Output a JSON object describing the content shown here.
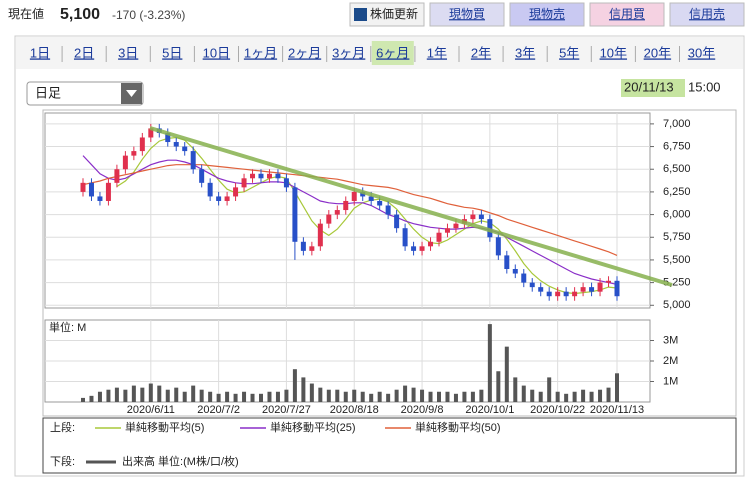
{
  "header": {
    "price_label": "現在値",
    "price": "5,100",
    "change": "-170 (-3.23%)",
    "buttons": [
      {
        "label": "株価更新",
        "color": "#f2f2f2"
      },
      {
        "label": "現物買",
        "color": "#dcdcf2"
      },
      {
        "label": "現物売",
        "color": "#c9c9f2"
      },
      {
        "label": "信用買",
        "color": "#f5d2e2"
      },
      {
        "label": "信用売",
        "color": "#d9d9f2"
      }
    ]
  },
  "tabs": [
    "1日",
    "2日",
    "3日",
    "5日",
    "10日",
    "1ヶ月",
    "2ヶ月",
    "3ヶ月",
    "6ヶ月",
    "1年",
    "2年",
    "3年",
    "5年",
    "10年",
    "20年",
    "30年"
  ],
  "selected_tab_index": 8,
  "dropdown": "日足",
  "timestamp": {
    "date": "20/11/13",
    "time": "15:00"
  },
  "chart_data": [
    {
      "type": "candlestick",
      "legend_label": "上段:",
      "up_color": "#e0304e",
      "down_color": "#2850c8",
      "open": [
        6250,
        6350,
        6200,
        6150,
        6350,
        6500,
        6650,
        6700,
        6850,
        6950,
        6900,
        6800,
        6750,
        6700,
        6500,
        6350,
        6200,
        6150,
        6200,
        6300,
        6400,
        6450,
        6400,
        6450,
        6400,
        6300,
        5700,
        5600,
        5650,
        5900,
        6000,
        6050,
        6150,
        6250,
        6200,
        6150,
        6100,
        6000,
        5850,
        5650,
        5600,
        5650,
        5700,
        5800,
        5850,
        5900,
        5950,
        6000,
        5950,
        5750,
        5550,
        5400,
        5350,
        5250,
        5200,
        5150,
        5100,
        5150,
        5100,
        5150,
        5200,
        5150,
        5250,
        5270
      ],
      "high": [
        6400,
        6400,
        6250,
        6400,
        6550,
        6700,
        6750,
        6900,
        7000,
        7000,
        6950,
        6850,
        6800,
        6750,
        6550,
        6400,
        6250,
        6250,
        6350,
        6450,
        6500,
        6500,
        6500,
        6500,
        6450,
        6350,
        5750,
        5700,
        5950,
        6050,
        6100,
        6200,
        6300,
        6300,
        6250,
        6200,
        6150,
        6050,
        5900,
        5700,
        5700,
        5750,
        5850,
        5900,
        5950,
        6000,
        6050,
        6050,
        6000,
        5800,
        5600,
        5450,
        5400,
        5300,
        5250,
        5200,
        5200,
        5200,
        5200,
        5250,
        5250,
        5300,
        5320,
        5320
      ],
      "low": [
        6200,
        6150,
        6100,
        6100,
        6300,
        6450,
        6600,
        6650,
        6800,
        6850,
        6750,
        6700,
        6650,
        6450,
        6300,
        6150,
        6100,
        6100,
        6150,
        6250,
        6350,
        6350,
        6350,
        6350,
        6250,
        5500,
        5550,
        5550,
        5600,
        5850,
        5950,
        6000,
        6100,
        6150,
        6100,
        6050,
        5950,
        5800,
        5600,
        5550,
        5550,
        5600,
        5650,
        5750,
        5800,
        5850,
        5900,
        5900,
        5700,
        5500,
        5350,
        5300,
        5200,
        5150,
        5100,
        5050,
        5050,
        5050,
        5050,
        5100,
        5100,
        5100,
        5200,
        5050
      ],
      "close": [
        6350,
        6200,
        6150,
        6350,
        6500,
        6650,
        6700,
        6850,
        6950,
        6900,
        6800,
        6750,
        6700,
        6500,
        6350,
        6200,
        6150,
        6200,
        6300,
        6400,
        6450,
        6400,
        6450,
        6400,
        6300,
        5700,
        5600,
        5650,
        5900,
        6000,
        6050,
        6150,
        6250,
        6200,
        6150,
        6100,
        6000,
        5850,
        5650,
        5600,
        5650,
        5700,
        5800,
        5850,
        5900,
        5950,
        6000,
        5950,
        5750,
        5550,
        5400,
        5350,
        5250,
        5200,
        5150,
        5100,
        5150,
        5100,
        5150,
        5200,
        5150,
        5250,
        5270,
        5100
      ],
      "series": [
        {
          "name": "単純移動平均(5)",
          "color": "#a8c83a",
          "values": [
            null,
            null,
            null,
            null,
            6310,
            6370,
            6470,
            6610,
            6730,
            6810,
            6840,
            6850,
            6820,
            6730,
            6620,
            6500,
            6380,
            6280,
            6240,
            6250,
            6300,
            6350,
            6400,
            6420,
            6400,
            6250,
            6090,
            5930,
            5830,
            5770,
            5840,
            5950,
            6070,
            6130,
            6160,
            6170,
            6140,
            6060,
            5950,
            5840,
            5750,
            5690,
            5680,
            5720,
            5780,
            5840,
            5900,
            5930,
            5910,
            5840,
            5730,
            5600,
            5460,
            5350,
            5270,
            5210,
            5170,
            5140,
            5130,
            5140,
            5150,
            5170,
            5200,
            5190
          ]
        },
        {
          "name": "単純移動平均(25)",
          "color": "#8a2ec8",
          "values": [
            6650,
            6550,
            6450,
            6400,
            6380,
            6400,
            6450,
            6500,
            6550,
            6580,
            6600,
            6600,
            6580,
            6550,
            6500,
            6450,
            6400,
            6370,
            6350,
            6340,
            6340,
            6350,
            6360,
            6360,
            6350,
            6300,
            6250,
            6200,
            6150,
            6130,
            6120,
            6120,
            6130,
            6130,
            6100,
            6050,
            6000,
            5970,
            5930,
            5900,
            5880,
            5860,
            5850,
            5840,
            5840,
            5850,
            5860,
            5850,
            5830,
            5800,
            5750,
            5700,
            5650,
            5600,
            5550,
            5500,
            5450,
            5400,
            5350,
            5320,
            5290,
            5270,
            5250,
            5230
          ]
        },
        {
          "name": "単純移動平均(50)",
          "color": "#e0603a",
          "values": [
            6330,
            6350,
            6370,
            6400,
            6420,
            6440,
            6460,
            6480,
            6500,
            6520,
            6540,
            6550,
            6550,
            6550,
            6550,
            6540,
            6530,
            6520,
            6510,
            6500,
            6490,
            6480,
            6470,
            6460,
            6450,
            6440,
            6430,
            6420,
            6410,
            6400,
            6390,
            6370,
            6350,
            6330,
            6320,
            6310,
            6300,
            6280,
            6250,
            6220,
            6200,
            6180,
            6150,
            6120,
            6100,
            6080,
            6070,
            6050,
            6020,
            5990,
            5950,
            5920,
            5890,
            5860,
            5830,
            5800,
            5770,
            5740,
            5710,
            5680,
            5650,
            5620,
            5590,
            5550
          ]
        }
      ],
      "ylim": [
        4970,
        7120
      ],
      "yticks": [
        {
          "value": 5000,
          "label": "5,000"
        },
        {
          "value": 5250,
          "label": "5,250"
        },
        {
          "value": 5500,
          "label": "5,500"
        },
        {
          "value": 5750,
          "label": "5,750"
        },
        {
          "value": 6000,
          "label": "6,000"
        },
        {
          "value": 6250,
          "label": "6,250"
        },
        {
          "value": 6500,
          "label": "6,500"
        },
        {
          "value": 6750,
          "label": "6,750"
        },
        {
          "value": 7000,
          "label": "7,000"
        }
      ],
      "grid": true
    },
    {
      "type": "bar",
      "legend_label": "下段:",
      "unit_label": "単位: M",
      "categories": [
        null,
        null,
        null,
        null,
        null,
        null,
        null,
        null,
        "2020/6/11",
        null,
        null,
        null,
        null,
        null,
        null,
        null,
        "2020/7/2",
        null,
        null,
        null,
        null,
        null,
        null,
        null,
        "2020/7/27",
        null,
        null,
        null,
        null,
        null,
        null,
        null,
        "2020/8/18",
        null,
        null,
        null,
        null,
        null,
        null,
        null,
        "2020/9/8",
        null,
        null,
        null,
        null,
        null,
        null,
        null,
        "2020/10/1",
        null,
        null,
        null,
        null,
        null,
        null,
        null,
        "2020/10/22",
        null,
        null,
        null,
        null,
        null,
        null,
        "2020/11/13"
      ],
      "series": [
        {
          "name": "出来高 単位:(M株/口/枚)",
          "color": "#555555",
          "values": [
            0.2,
            0.3,
            0.5,
            0.6,
            0.7,
            0.6,
            0.8,
            0.7,
            0.9,
            0.8,
            0.6,
            0.7,
            0.5,
            0.8,
            0.6,
            0.5,
            0.4,
            0.5,
            0.4,
            0.5,
            0.4,
            0.4,
            0.5,
            0.5,
            0.6,
            1.6,
            1.2,
            0.9,
            0.7,
            0.6,
            0.6,
            0.5,
            0.6,
            0.5,
            0.4,
            0.5,
            0.4,
            0.6,
            0.8,
            0.7,
            0.6,
            0.5,
            0.5,
            0.5,
            0.4,
            0.5,
            0.5,
            0.6,
            3.8,
            1.5,
            2.7,
            1.2,
            0.8,
            0.6,
            0.5,
            1.2,
            0.5,
            0.4,
            0.5,
            0.6,
            0.5,
            0.6,
            0.7,
            1.4
          ]
        }
      ],
      "ylim": [
        0,
        4
      ],
      "yticks": [
        {
          "value": 1,
          "label": "1M"
        },
        {
          "value": 2,
          "label": "2M"
        },
        {
          "value": 3,
          "label": "3M"
        }
      ],
      "grid": true
    }
  ]
}
